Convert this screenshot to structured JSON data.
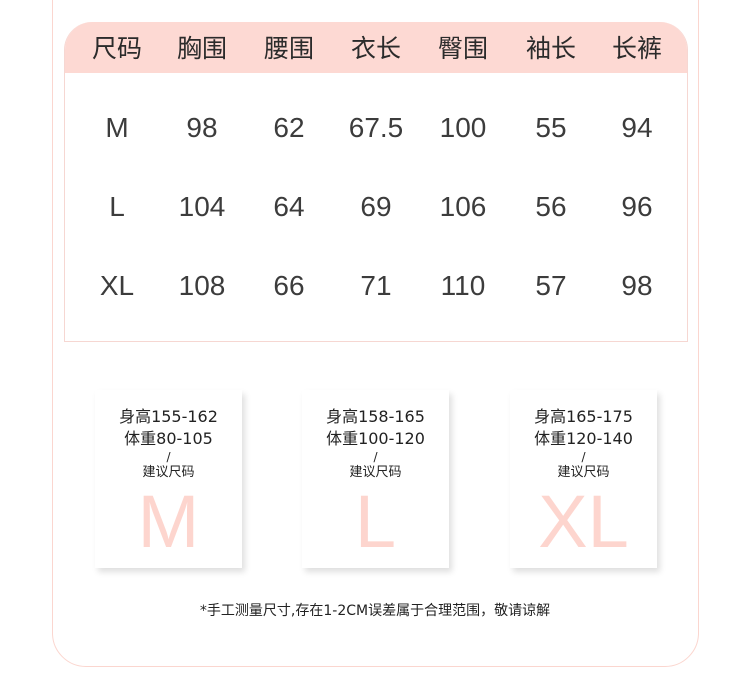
{
  "table": {
    "headers": [
      "尺码",
      "胸围",
      "腰围",
      "衣长",
      "臀围",
      "袖长",
      "长裤"
    ],
    "rows": [
      [
        "M",
        "98",
        "62",
        "67.5",
        "100",
        "55",
        "94"
      ],
      [
        "L",
        "104",
        "64",
        "69",
        "106",
        "56",
        "96"
      ],
      [
        "XL",
        "108",
        "66",
        "71",
        "110",
        "57",
        "98"
      ]
    ]
  },
  "cards": [
    {
      "height": "身高155-162",
      "weight": "体重80-105",
      "slash": "/",
      "label": "建议尺码",
      "size": "M"
    },
    {
      "height": "身高158-165",
      "weight": "体重100-120",
      "slash": "/",
      "label": "建议尺码",
      "size": "L"
    },
    {
      "height": "身高165-175",
      "weight": "体重120-140",
      "slash": "/",
      "label": "建议尺码",
      "size": "XL"
    }
  ],
  "note": "*手工测量尺寸,存在1-2CM误差属于合理范围，敬请谅解",
  "colors": {
    "header_bg": "#fdd9d3",
    "size_letter": "#fdd5ce",
    "border": "#fbd6cf"
  }
}
